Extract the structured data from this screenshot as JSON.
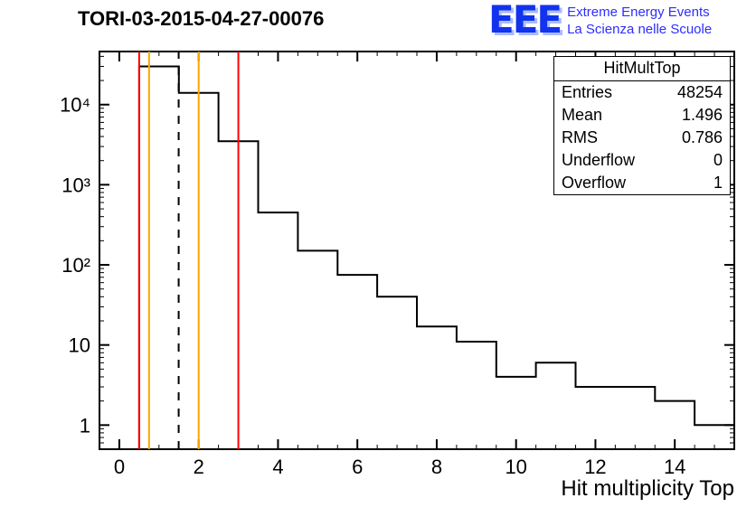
{
  "brand": {
    "logo": "EEE",
    "line1": "Extreme Energy Events",
    "line2": "La Scienza nelle Scuole",
    "color": "#2d2dff"
  },
  "stats": {
    "title": "HitMultTop",
    "rows": [
      {
        "label": "Entries",
        "value": "48254"
      },
      {
        "label": "Mean",
        "value": "1.496"
      },
      {
        "label": "RMS",
        "value": "0.786"
      },
      {
        "label": "Underflow",
        "value": "0"
      },
      {
        "label": "Overflow",
        "value": "1"
      }
    ]
  },
  "chart_data": {
    "type": "bar",
    "subtype": "step-histogram",
    "title": "TORI-03-2015-04-27-00076",
    "xlabel": "Hit multiplicity Top",
    "ylabel": "",
    "y_scale": "log",
    "x_range": [
      -0.5,
      15.5
    ],
    "y_range": [
      0.5,
      46000
    ],
    "grid": false,
    "line_color": "#000000",
    "bin_edges": [
      0.5,
      1.5,
      2.5,
      3.5,
      4.5,
      5.5,
      6.5,
      7.5,
      8.5,
      9.5,
      10.5,
      11.5,
      12.5,
      13.5,
      14.5,
      15.5
    ],
    "bin_values": [
      30000,
      14000,
      3500,
      450,
      150,
      75,
      40,
      17,
      11,
      4,
      6,
      3,
      3,
      2,
      1
    ],
    "x_ticks": [
      0,
      2,
      4,
      6,
      8,
      10,
      12,
      14
    ],
    "y_ticks": [
      {
        "value": 1,
        "label": "1"
      },
      {
        "value": 10,
        "label": "10"
      },
      {
        "value": 100,
        "label": "10²"
      },
      {
        "value": 1000,
        "label": "10³"
      },
      {
        "value": 10000,
        "label": "10⁴"
      }
    ],
    "marker_lines": [
      {
        "name": "red-threshold-line-low",
        "x": 0.5,
        "color": "#ff0000",
        "style": "solid"
      },
      {
        "name": "orange-warning-line-low",
        "x": 0.75,
        "color": "#ffa500",
        "style": "solid"
      },
      {
        "name": "mean-dashed-line",
        "x": 1.496,
        "color": "#000000",
        "style": "dashed"
      },
      {
        "name": "orange-warning-line-high",
        "x": 2.0,
        "color": "#ffa500",
        "style": "solid"
      },
      {
        "name": "red-threshold-line-high",
        "x": 3.0,
        "color": "#ff0000",
        "style": "solid"
      }
    ]
  }
}
